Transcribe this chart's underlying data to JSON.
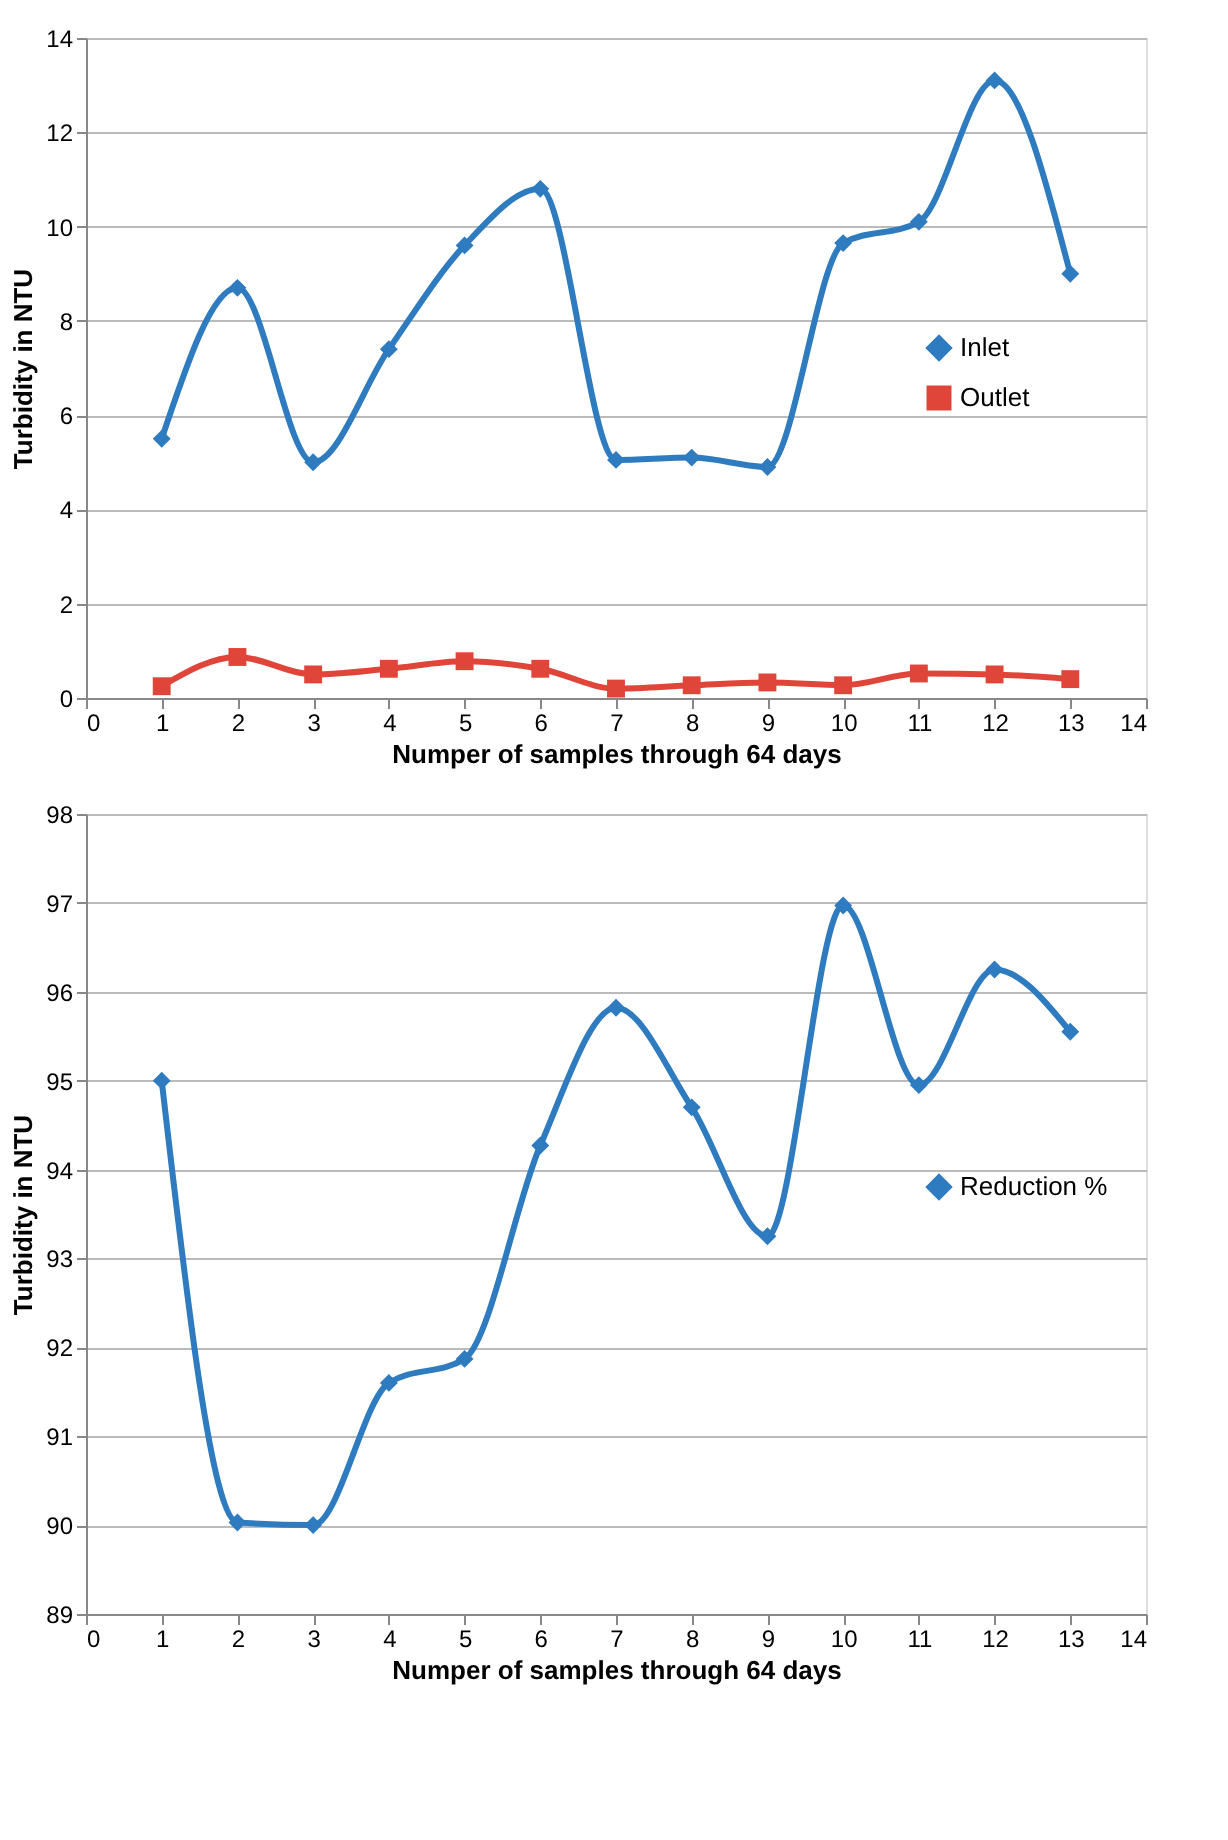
{
  "chart_data": [
    {
      "type": "line",
      "xlabel": "Numper of samples through 64 days",
      "ylabel": "Turbidity in NTU",
      "x": [
        1,
        2,
        3,
        4,
        5,
        6,
        7,
        8,
        9,
        10,
        11,
        12,
        13
      ],
      "series": [
        {
          "name": "Inlet",
          "color": "#2e7bbf",
          "marker": "diamond",
          "values": [
            5.5,
            8.7,
            5.0,
            7.4,
            9.6,
            10.8,
            5.05,
            5.1,
            4.9,
            9.65,
            10.1,
            13.1,
            9.0
          ]
        },
        {
          "name": "Outlet",
          "color": "#e0453a",
          "marker": "square",
          "values": [
            0.25,
            0.87,
            0.5,
            0.62,
            0.78,
            0.62,
            0.2,
            0.27,
            0.33,
            0.27,
            0.52,
            0.5,
            0.4
          ]
        }
      ],
      "xlim": [
        0,
        14
      ],
      "xticks": [
        0,
        1,
        2,
        3,
        4,
        5,
        6,
        7,
        8,
        9,
        10,
        11,
        12,
        13,
        14
      ],
      "ylim": [
        0,
        14
      ],
      "yticks": [
        0,
        2,
        4,
        6,
        8,
        10,
        12,
        14
      ],
      "grid": "y",
      "legend": "right",
      "line_style": "solid"
    },
    {
      "type": "line",
      "xlabel": "Numper of samples through 64 days",
      "ylabel": "Turbidity in NTU",
      "x": [
        1,
        2,
        3,
        4,
        5,
        6,
        7,
        8,
        9,
        10,
        11,
        12,
        13
      ],
      "series": [
        {
          "name": "Reduction %",
          "color": "#2e7bbf",
          "marker": "diamond",
          "values": [
            95.0,
            90.03,
            90.0,
            91.6,
            91.87,
            94.27,
            95.82,
            94.7,
            93.25,
            96.97,
            94.95,
            96.25,
            95.55
          ]
        }
      ],
      "xlim": [
        0,
        14
      ],
      "xticks": [
        0,
        1,
        2,
        3,
        4,
        5,
        6,
        7,
        8,
        9,
        10,
        11,
        12,
        13,
        14
      ],
      "ylim": [
        89,
        98
      ],
      "yticks": [
        89,
        90,
        91,
        92,
        93,
        94,
        95,
        96,
        97,
        98
      ],
      "grid": "y",
      "legend": "right",
      "line_style": "solid"
    }
  ]
}
